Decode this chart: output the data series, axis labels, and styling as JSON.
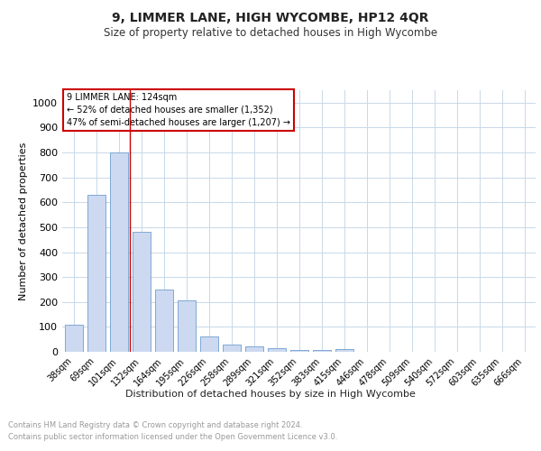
{
  "title": "9, LIMMER LANE, HIGH WYCOMBE, HP12 4QR",
  "subtitle": "Size of property relative to detached houses in High Wycombe",
  "xlabel": "Distribution of detached houses by size in High Wycombe",
  "ylabel": "Number of detached properties",
  "categories": [
    "38sqm",
    "69sqm",
    "101sqm",
    "132sqm",
    "164sqm",
    "195sqm",
    "226sqm",
    "258sqm",
    "289sqm",
    "321sqm",
    "352sqm",
    "383sqm",
    "415sqm",
    "446sqm",
    "478sqm",
    "509sqm",
    "540sqm",
    "572sqm",
    "603sqm",
    "635sqm",
    "666sqm"
  ],
  "values": [
    110,
    630,
    800,
    480,
    250,
    205,
    60,
    28,
    22,
    15,
    8,
    8,
    12,
    0,
    0,
    0,
    0,
    0,
    0,
    0,
    0
  ],
  "bar_color": "#ccd9f0",
  "bar_edge_color": "#7fa8d4",
  "vline_x": 2.5,
  "vline_color": "#cc0000",
  "annotation_text": "9 LIMMER LANE: 124sqm\n← 52% of detached houses are smaller (1,352)\n47% of semi-detached houses are larger (1,207) →",
  "annotation_box_color": "#ffffff",
  "annotation_border_color": "#cc0000",
  "ylim": [
    0,
    1050
  ],
  "yticks": [
    0,
    100,
    200,
    300,
    400,
    500,
    600,
    700,
    800,
    900,
    1000
  ],
  "footer_line1": "Contains HM Land Registry data © Crown copyright and database right 2024.",
  "footer_line2": "Contains public sector information licensed under the Open Government Licence v3.0.",
  "bg_color": "#ffffff",
  "grid_color": "#c8d8e8"
}
